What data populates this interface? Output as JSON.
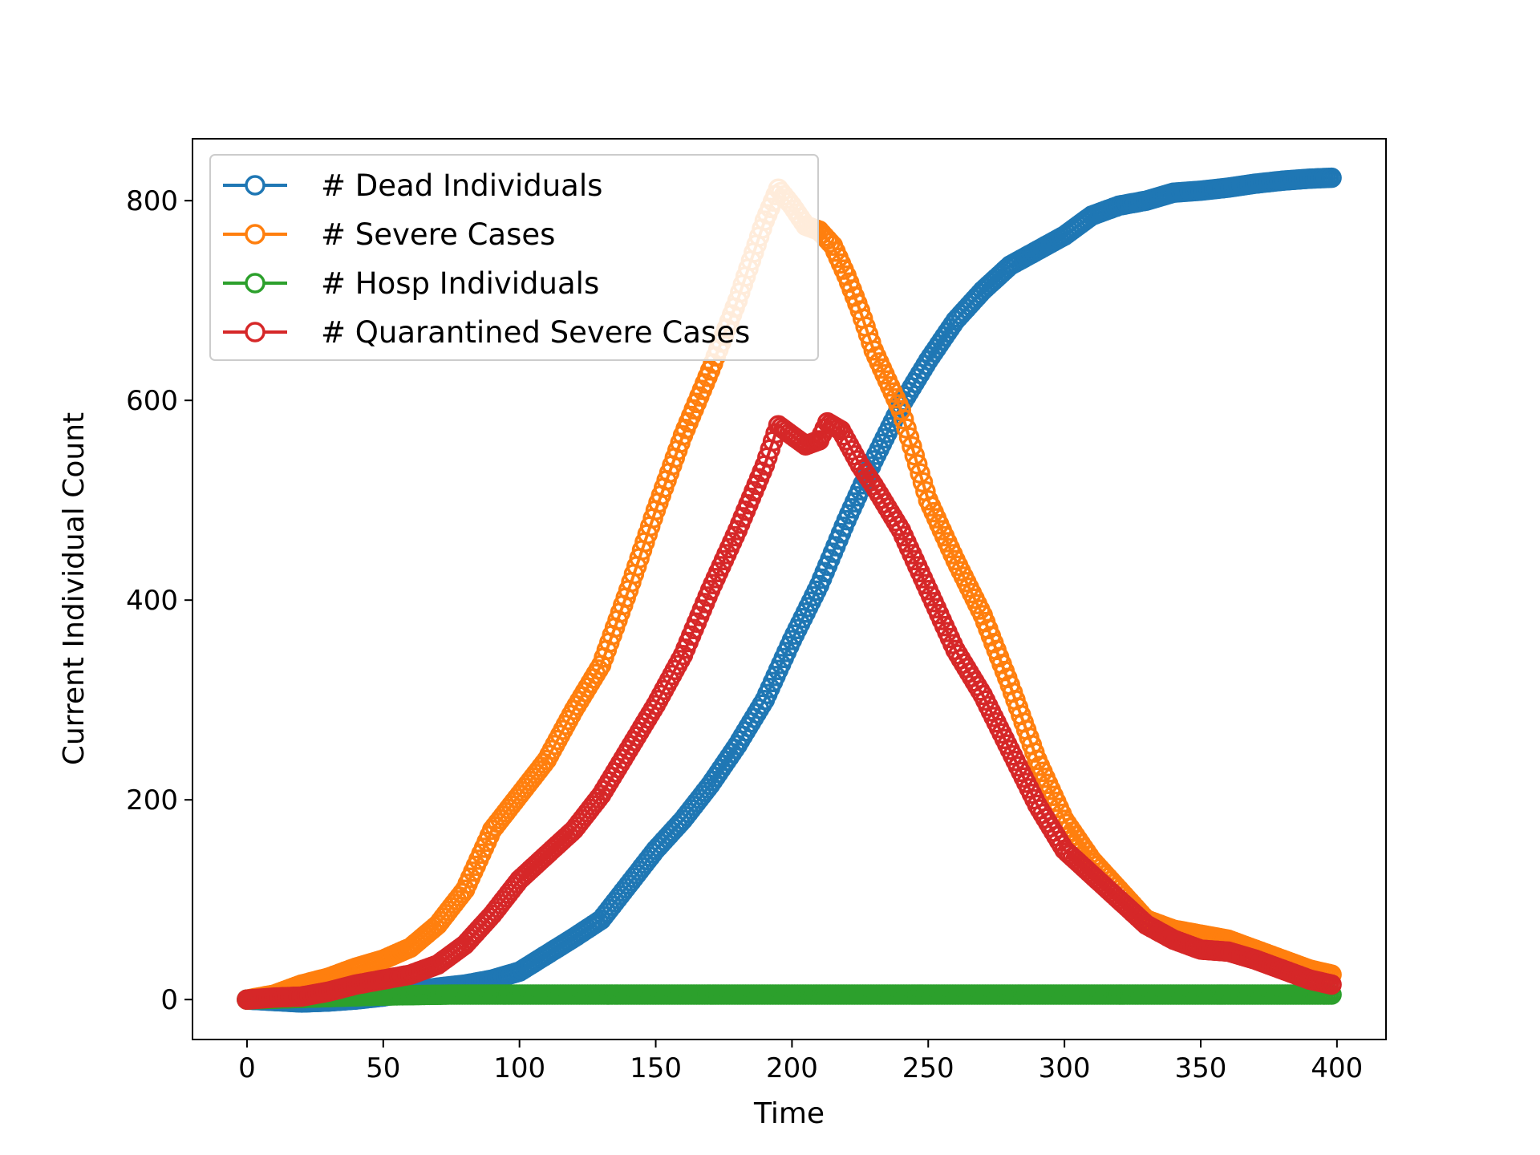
{
  "chart_data": {
    "type": "line",
    "title": "",
    "xlabel": "Time",
    "ylabel": "Current Individual Count",
    "xlim": [
      -20,
      418
    ],
    "ylim": [
      -40,
      862
    ],
    "xticks": [
      0,
      50,
      100,
      150,
      200,
      250,
      300,
      350,
      400
    ],
    "yticks": [
      0,
      200,
      400,
      600,
      800
    ],
    "legend_position": "top-left",
    "series": [
      {
        "name": "# Dead Individuals",
        "color": "#1f77b4",
        "points": [
          [
            0,
            0
          ],
          [
            20,
            -3
          ],
          [
            30,
            -2
          ],
          [
            40,
            0
          ],
          [
            50,
            3
          ],
          [
            60,
            8
          ],
          [
            70,
            12
          ],
          [
            80,
            15
          ],
          [
            90,
            20
          ],
          [
            100,
            28
          ],
          [
            110,
            45
          ],
          [
            120,
            62
          ],
          [
            130,
            80
          ],
          [
            140,
            115
          ],
          [
            150,
            150
          ],
          [
            160,
            180
          ],
          [
            170,
            215
          ],
          [
            180,
            255
          ],
          [
            190,
            300
          ],
          [
            200,
            360
          ],
          [
            210,
            415
          ],
          [
            220,
            480
          ],
          [
            230,
            540
          ],
          [
            240,
            595
          ],
          [
            250,
            640
          ],
          [
            260,
            680
          ],
          [
            270,
            710
          ],
          [
            280,
            735
          ],
          [
            290,
            750
          ],
          [
            300,
            765
          ],
          [
            310,
            785
          ],
          [
            320,
            795
          ],
          [
            330,
            800
          ],
          [
            340,
            808
          ],
          [
            350,
            810
          ],
          [
            360,
            813
          ],
          [
            370,
            817
          ],
          [
            380,
            820
          ],
          [
            390,
            822
          ],
          [
            398,
            823
          ]
        ]
      },
      {
        "name": "# Severe Cases",
        "color": "#ff7f0e",
        "points": [
          [
            0,
            0
          ],
          [
            10,
            5
          ],
          [
            20,
            15
          ],
          [
            30,
            22
          ],
          [
            40,
            32
          ],
          [
            50,
            40
          ],
          [
            60,
            52
          ],
          [
            70,
            75
          ],
          [
            80,
            110
          ],
          [
            90,
            170
          ],
          [
            100,
            205
          ],
          [
            110,
            240
          ],
          [
            120,
            290
          ],
          [
            130,
            335
          ],
          [
            140,
            410
          ],
          [
            150,
            490
          ],
          [
            160,
            565
          ],
          [
            170,
            630
          ],
          [
            180,
            700
          ],
          [
            190,
            780
          ],
          [
            195,
            812
          ],
          [
            200,
            795
          ],
          [
            205,
            775
          ],
          [
            210,
            770
          ],
          [
            215,
            755
          ],
          [
            220,
            725
          ],
          [
            225,
            690
          ],
          [
            230,
            650
          ],
          [
            240,
            590
          ],
          [
            250,
            500
          ],
          [
            260,
            440
          ],
          [
            270,
            385
          ],
          [
            280,
            315
          ],
          [
            290,
            240
          ],
          [
            300,
            180
          ],
          [
            310,
            140
          ],
          [
            320,
            110
          ],
          [
            330,
            80
          ],
          [
            340,
            70
          ],
          [
            350,
            65
          ],
          [
            360,
            60
          ],
          [
            370,
            50
          ],
          [
            380,
            40
          ],
          [
            390,
            30
          ],
          [
            398,
            25
          ]
        ]
      },
      {
        "name": "# Hosp Individuals",
        "color": "#2ca02c",
        "points": [
          [
            0,
            0
          ],
          [
            25,
            2
          ],
          [
            50,
            4
          ],
          [
            75,
            5
          ],
          [
            100,
            5
          ],
          [
            150,
            5
          ],
          [
            200,
            5
          ],
          [
            250,
            5
          ],
          [
            300,
            5
          ],
          [
            350,
            5
          ],
          [
            398,
            5
          ]
        ]
      },
      {
        "name": "# Quarantined Severe Cases",
        "color": "#d62728",
        "points": [
          [
            0,
            0
          ],
          [
            10,
            2
          ],
          [
            20,
            3
          ],
          [
            30,
            8
          ],
          [
            40,
            15
          ],
          [
            50,
            20
          ],
          [
            60,
            25
          ],
          [
            70,
            35
          ],
          [
            80,
            55
          ],
          [
            90,
            85
          ],
          [
            100,
            120
          ],
          [
            110,
            145
          ],
          [
            120,
            170
          ],
          [
            130,
            205
          ],
          [
            140,
            250
          ],
          [
            150,
            295
          ],
          [
            160,
            345
          ],
          [
            170,
            410
          ],
          [
            180,
            470
          ],
          [
            190,
            535
          ],
          [
            195,
            575
          ],
          [
            200,
            565
          ],
          [
            205,
            555
          ],
          [
            210,
            560
          ],
          [
            213,
            578
          ],
          [
            218,
            570
          ],
          [
            225,
            535
          ],
          [
            230,
            515
          ],
          [
            240,
            470
          ],
          [
            250,
            410
          ],
          [
            260,
            350
          ],
          [
            270,
            305
          ],
          [
            280,
            250
          ],
          [
            290,
            195
          ],
          [
            300,
            150
          ],
          [
            310,
            125
          ],
          [
            320,
            100
          ],
          [
            330,
            75
          ],
          [
            340,
            60
          ],
          [
            350,
            50
          ],
          [
            360,
            48
          ],
          [
            370,
            40
          ],
          [
            380,
            30
          ],
          [
            390,
            20
          ],
          [
            398,
            15
          ]
        ]
      }
    ]
  }
}
